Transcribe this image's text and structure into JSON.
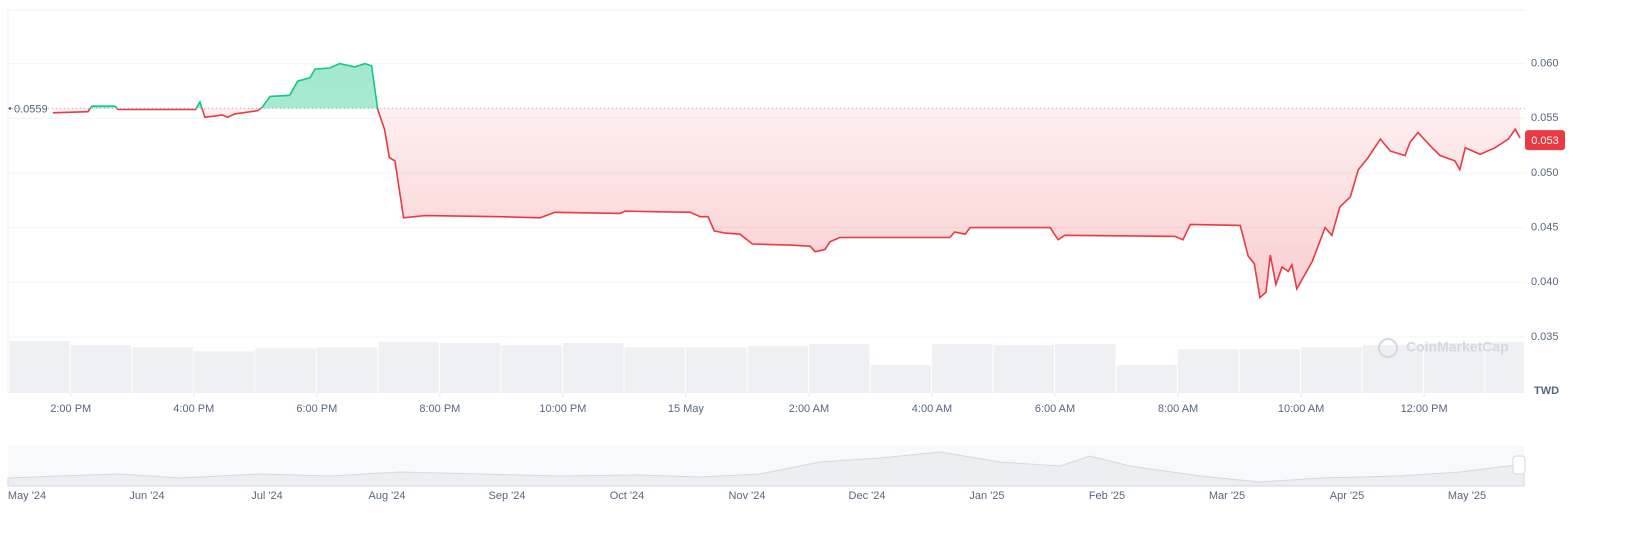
{
  "chart_data": {
    "type": "line",
    "baseline": 0.0559,
    "current_price": 0.053,
    "unit": "TWD",
    "watermark": "CoinMarketCap",
    "up_color": "#16c784",
    "down_color": "#ea3943",
    "grid": true,
    "series": [
      {
        "x": [
          13.71,
          14.28,
          14.34,
          14.72,
          14.77,
          15.28,
          16.03,
          16.1,
          16.18,
          16.34,
          16.46,
          16.55,
          16.67,
          17.04,
          17.11,
          17.24,
          17.56,
          17.69,
          17.89,
          17.97,
          18.21,
          18.37,
          18.62,
          18.78,
          18.89,
          18.99,
          19.1,
          19.18,
          19.27,
          19.41,
          19.76,
          20.98,
          21.63,
          21.87,
          22.93,
          23.01,
          24.07,
          24.23,
          24.36,
          24.46,
          24.64,
          24.88,
          25.08,
          25.69,
          26.02,
          26.1,
          26.26,
          26.34,
          26.5,
          28.29,
          28.37,
          28.54,
          28.62,
          29.92,
          30.05,
          30.16,
          31.95,
          32.08,
          32.2,
          33.01,
          33.14,
          33.24,
          33.33,
          33.43,
          33.5,
          33.59,
          33.69,
          33.79,
          33.85,
          33.93,
          34.18,
          34.39,
          34.5,
          34.63,
          34.8,
          34.93,
          35.09,
          35.29,
          35.45,
          35.69,
          35.77,
          35.9,
          36.13,
          36.26,
          36.5,
          36.58,
          36.67,
          36.91,
          37.15,
          37.37,
          37.48,
          37.56
        ],
        "values": [
          0.0555,
          0.0556,
          0.0561,
          0.0561,
          0.0558,
          0.0558,
          0.0558,
          0.0565,
          0.0551,
          0.0552,
          0.0553,
          0.0551,
          0.0554,
          0.0557,
          0.056,
          0.057,
          0.0571,
          0.0584,
          0.0587,
          0.0595,
          0.0596,
          0.06,
          0.0597,
          0.06,
          0.0598,
          0.0558,
          0.054,
          0.0514,
          0.0511,
          0.0459,
          0.0461,
          0.046,
          0.0459,
          0.0464,
          0.0463,
          0.0465,
          0.0464,
          0.046,
          0.046,
          0.0447,
          0.0445,
          0.0444,
          0.0435,
          0.0434,
          0.0433,
          0.0428,
          0.043,
          0.0437,
          0.0441,
          0.0441,
          0.0446,
          0.0444,
          0.045,
          0.045,
          0.0439,
          0.0443,
          0.0442,
          0.0439,
          0.0453,
          0.0452,
          0.0424,
          0.0417,
          0.0386,
          0.0391,
          0.0425,
          0.0398,
          0.0414,
          0.041,
          0.0416,
          0.0394,
          0.0419,
          0.045,
          0.0443,
          0.0469,
          0.0478,
          0.0503,
          0.0514,
          0.0531,
          0.052,
          0.0516,
          0.0528,
          0.0537,
          0.0523,
          0.0516,
          0.0511,
          0.0503,
          0.0523,
          0.0517,
          0.0523,
          0.0531,
          0.054,
          0.0532
        ]
      }
    ],
    "volume": {
      "x": [
        13,
        14,
        15,
        16,
        17,
        18,
        19,
        20,
        21,
        22,
        23,
        24,
        25,
        26,
        27,
        28,
        29,
        30,
        31,
        32,
        33,
        34,
        35,
        36,
        37
      ],
      "values": [
        100,
        92,
        88,
        80,
        86,
        88,
        98,
        96,
        92,
        96,
        88,
        88,
        90,
        94,
        54,
        94,
        92,
        94,
        54,
        84,
        84,
        88,
        92,
        96,
        98
      ],
      "vlim": [
        0,
        100
      ]
    },
    "xlim": [
      12.98,
      37.64
    ],
    "ylim": [
      0.035,
      0.0649
    ],
    "xticks": [
      {
        "value": 14,
        "label": "2:00 PM"
      },
      {
        "value": 16,
        "label": "4:00 PM"
      },
      {
        "value": 18,
        "label": "6:00 PM"
      },
      {
        "value": 20,
        "label": "8:00 PM"
      },
      {
        "value": 22,
        "label": "10:00 PM"
      },
      {
        "value": 24,
        "label": "15 May"
      },
      {
        "value": 26,
        "label": "2:00 AM"
      },
      {
        "value": 28,
        "label": "4:00 AM"
      },
      {
        "value": 30,
        "label": "6:00 AM"
      },
      {
        "value": 32,
        "label": "8:00 AM"
      },
      {
        "value": 34,
        "label": "10:00 AM"
      },
      {
        "value": 36,
        "label": "12:00 PM"
      }
    ],
    "yticks": [
      {
        "value": 0.06,
        "label": "0.060"
      },
      0.055,
      {
        "value": 0.05,
        "label": "0.050"
      },
      0.045,
      {
        "value": 0.04,
        "label": "0.040"
      },
      0.035
    ],
    "navigator": {
      "labels": [
        "May '24",
        "Jun '24",
        "Jul '24",
        "Aug '24",
        "Sep '24",
        "Oct '24",
        "Nov '24",
        "Dec '24",
        "Jan '25",
        "Feb '25",
        "Mar '25",
        "Apr '25",
        "May '25"
      ]
    }
  }
}
